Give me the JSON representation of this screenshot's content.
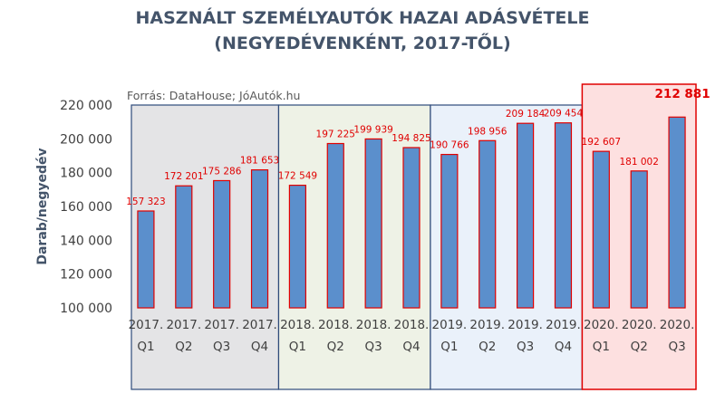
{
  "title_line1": "HASZNÁLT SZEMÉLYAUTÓK HAZAI ADÁSVÉTELE",
  "title_line2": "(NEGYEDÉVENKÉNT, 2017-TŐL)",
  "source": "Forrás: DataHouse; JóAutók.hu",
  "colors": {
    "bar_fill": "#5b8fcc",
    "bar_stroke": "#e00000",
    "data_label": "#e00000",
    "title": "#44546a",
    "group_2017": "#e4e4e6",
    "group_2018": "#eef2e6",
    "group_2019": "#eaf1fa",
    "group_2020": "#fde0e0",
    "group_border": "#2e4a7a",
    "group_border_2020": "#e00000"
  },
  "chart_data": {
    "type": "bar",
    "ylabel": "Darab/negyedév",
    "ylim": [
      100000,
      220000
    ],
    "yticks": [
      "100 000",
      "120 000",
      "140 000",
      "160 000",
      "180 000",
      "200 000",
      "220 000"
    ],
    "ytick_values": [
      100000,
      120000,
      140000,
      160000,
      180000,
      200000,
      220000
    ],
    "categories": [
      [
        "2017.",
        "Q1"
      ],
      [
        "2017.",
        "Q2"
      ],
      [
        "2017.",
        "Q3"
      ],
      [
        "2017.",
        "Q4"
      ],
      [
        "2018.",
        "Q1"
      ],
      [
        "2018.",
        "Q2"
      ],
      [
        "2018.",
        "Q3"
      ],
      [
        "2018.",
        "Q4"
      ],
      [
        "2019.",
        "Q1"
      ],
      [
        "2019.",
        "Q2"
      ],
      [
        "2019.",
        "Q3"
      ],
      [
        "2019.",
        "Q4"
      ],
      [
        "2020.",
        "Q1"
      ],
      [
        "2020.",
        "Q2"
      ],
      [
        "2020.",
        "Q3"
      ]
    ],
    "values": [
      157323,
      172201,
      175286,
      181653,
      172549,
      197225,
      199939,
      194825,
      190766,
      198956,
      209184,
      209454,
      192607,
      181002,
      212881
    ],
    "data_labels": [
      "157 323",
      "172 201",
      "175 286",
      "181 653",
      "172 549",
      "197 225",
      "199 939",
      "194 825",
      "190 766",
      "198 956",
      "209 184",
      "209 454",
      "192 607",
      "181 002",
      "212 881"
    ],
    "highlight_index": 14,
    "groups": [
      "2017",
      "2018",
      "2019",
      "2020"
    ]
  }
}
